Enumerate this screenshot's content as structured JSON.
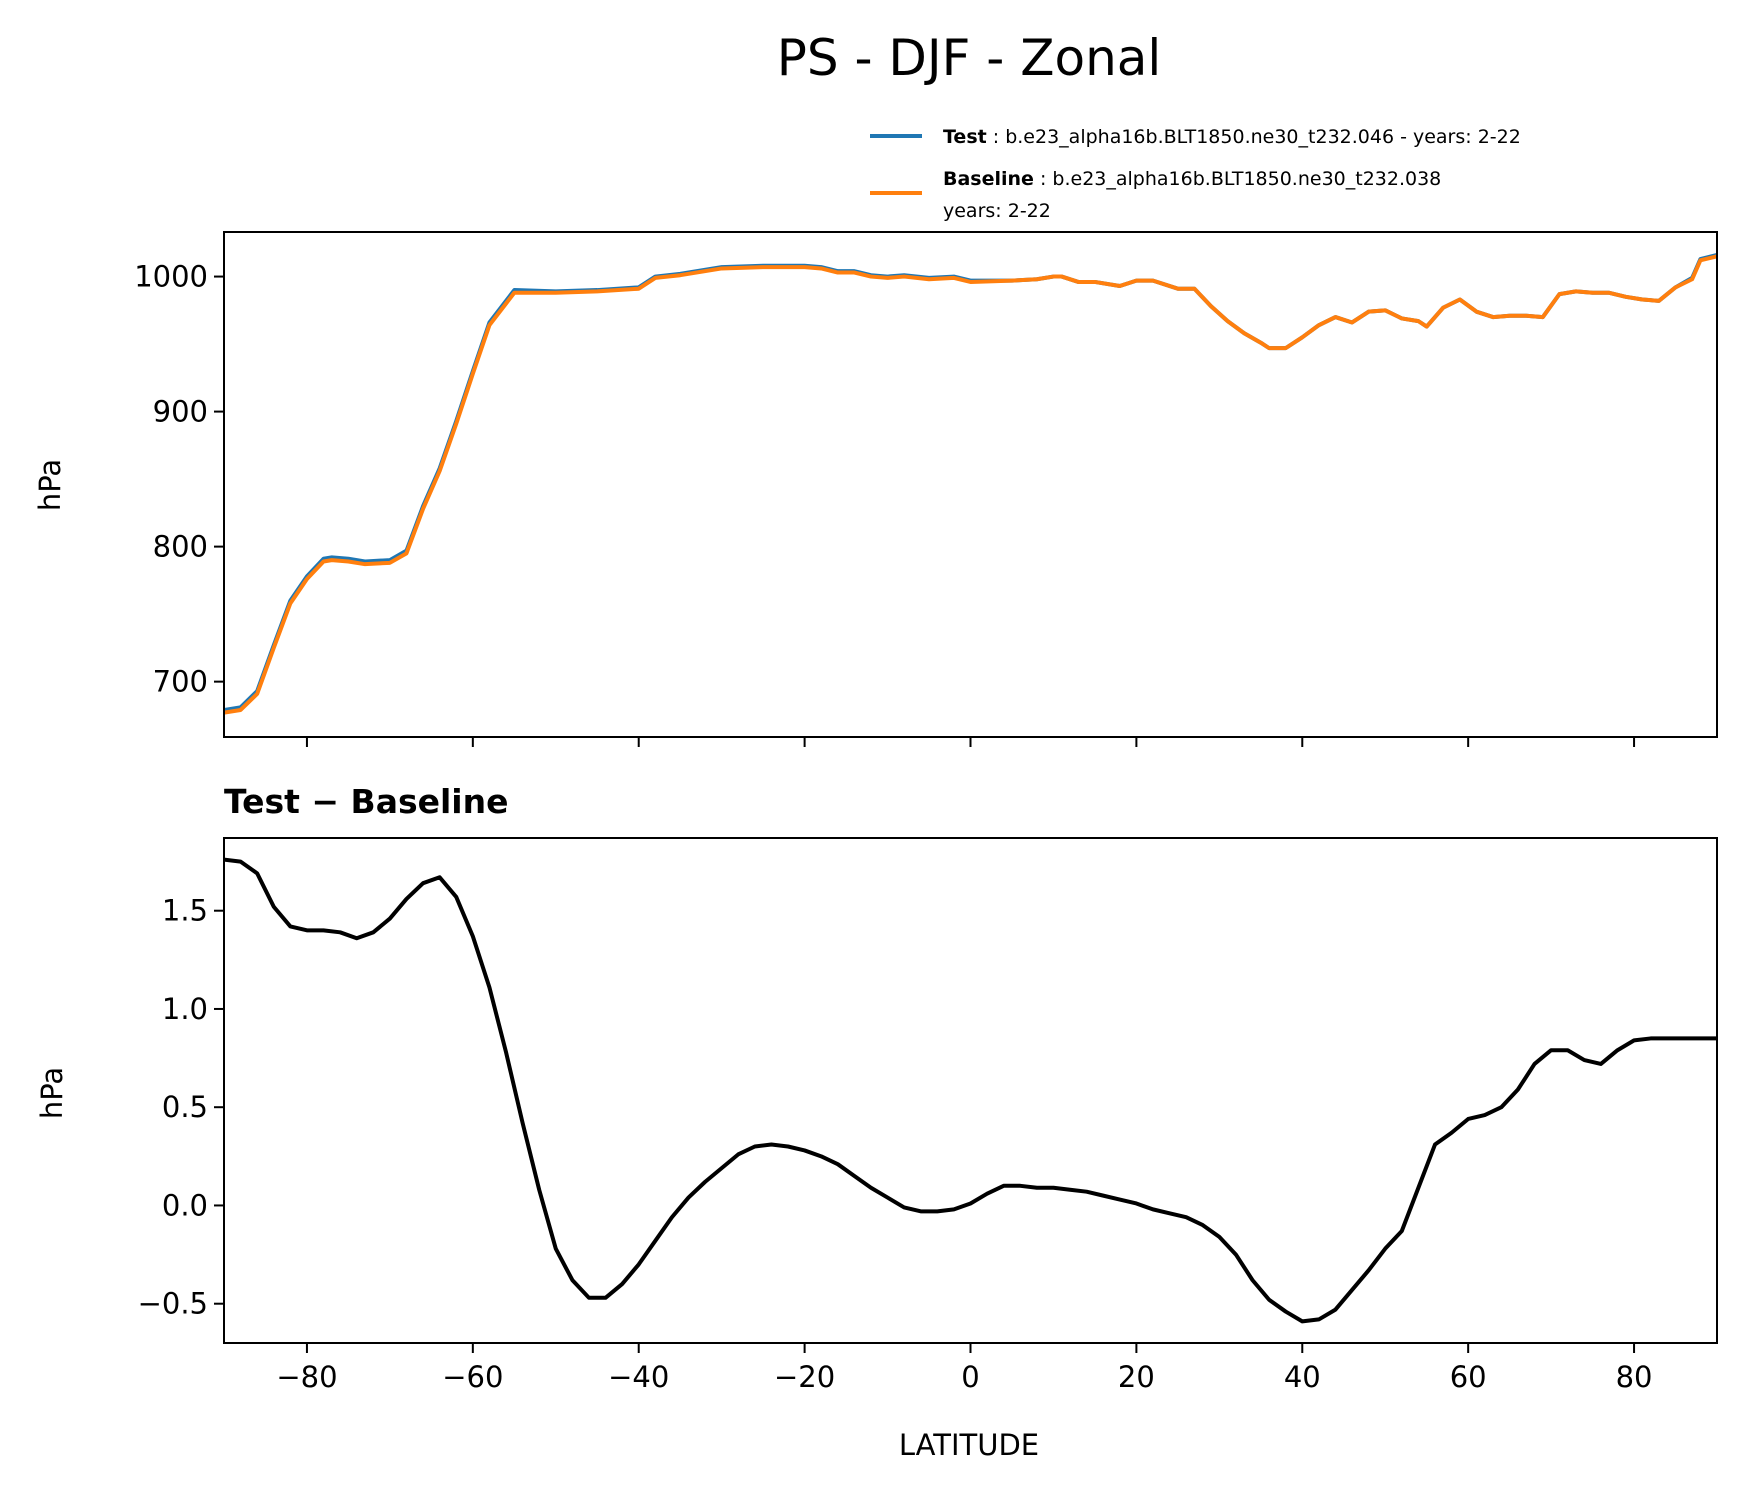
{
  "figure": {
    "title": "PS - DJF - Zonal"
  },
  "legend": {
    "items": [
      {
        "name": "Test",
        "sep": " : ",
        "text": "b.e23_alpha16b.BLT1850.ne30_t232.046 - years: 2-22",
        "color": "#1f77b4"
      },
      {
        "name": "Baseline",
        "sep": " : ",
        "text": "b.e23_alpha16b.BLT1850.ne30_t232.038",
        "text2": "years: 2-22",
        "color": "#ff7f0e"
      }
    ]
  },
  "chart_data": [
    {
      "type": "line",
      "title": "",
      "xlabel": "",
      "ylabel": "hPa",
      "xlim": [
        -90,
        90
      ],
      "ylim": [
        659,
        1033
      ],
      "xticks": [
        -80,
        -60,
        -40,
        -20,
        0,
        20,
        40,
        60,
        80
      ],
      "yticks": [
        700,
        800,
        900,
        1000
      ],
      "ytick_labels": [
        "700",
        "800",
        "900",
        "1000"
      ],
      "show_xtick_labels": false,
      "grid": false,
      "series": [
        {
          "name": "Test",
          "color": "#1f77b4",
          "x": [
            -90,
            -88,
            -86,
            -84,
            -82,
            -80,
            -78,
            -77,
            -75,
            -73,
            -70,
            -68,
            -66,
            -64,
            -62,
            -60,
            -58,
            -55,
            -50,
            -45,
            -40,
            -38,
            -35,
            -30,
            -25,
            -20,
            -18,
            -16,
            -14,
            -12,
            -10,
            -8,
            -5,
            -2,
            0,
            5,
            8,
            10,
            11,
            13,
            15,
            18,
            20,
            22,
            25,
            27,
            29,
            31,
            33,
            35,
            36,
            38,
            40,
            42,
            44,
            46,
            48,
            50,
            52,
            54,
            55,
            57,
            59,
            61,
            63,
            65,
            67,
            69,
            71,
            73,
            75,
            77,
            79,
            81,
            83,
            85,
            87,
            88,
            90
          ],
          "values": [
            679,
            681,
            693,
            727,
            760,
            778,
            791,
            792,
            791,
            789,
            790,
            797,
            830,
            858,
            893,
            930,
            966,
            990,
            989,
            990,
            992,
            1000,
            1002,
            1007,
            1008,
            1008,
            1007,
            1004,
            1004,
            1001,
            1000,
            1001,
            999,
            1000,
            997,
            997,
            998,
            1000,
            1000,
            996,
            996,
            993,
            997,
            997,
            991,
            991,
            978,
            967,
            958,
            951,
            947,
            947,
            955,
            964,
            970,
            966,
            974,
            975,
            969,
            967,
            963,
            977,
            983,
            974,
            970,
            971,
            971,
            970,
            987,
            989,
            988,
            988,
            985,
            983,
            982,
            992,
            999,
            1013,
            1016
          ]
        },
        {
          "name": "Baseline",
          "color": "#ff7f0e",
          "x": [
            -90,
            -88,
            -86,
            -84,
            -82,
            -80,
            -78,
            -77,
            -75,
            -73,
            -70,
            -68,
            -66,
            -64,
            -62,
            -60,
            -58,
            -55,
            -50,
            -45,
            -40,
            -38,
            -35,
            -30,
            -25,
            -20,
            -18,
            -16,
            -14,
            -12,
            -10,
            -8,
            -5,
            -2,
            0,
            5,
            8,
            10,
            11,
            13,
            15,
            18,
            20,
            22,
            25,
            27,
            29,
            31,
            33,
            35,
            36,
            38,
            40,
            42,
            44,
            46,
            48,
            50,
            52,
            54,
            55,
            57,
            59,
            61,
            63,
            65,
            67,
            69,
            71,
            73,
            75,
            77,
            79,
            81,
            83,
            85,
            87,
            88,
            90
          ],
          "values": [
            677,
            679,
            691,
            725,
            758,
            776,
            789,
            790,
            789,
            787,
            788,
            795,
            828,
            856,
            891,
            928,
            964,
            988,
            988,
            989,
            991,
            999,
            1001,
            1006,
            1007,
            1007,
            1006,
            1003,
            1003,
            1000,
            999,
            1000,
            998,
            999,
            996,
            997,
            998,
            1000,
            1000,
            996,
            996,
            993,
            997,
            997,
            991,
            991,
            978,
            967,
            958,
            951,
            947,
            947,
            955,
            964,
            970,
            966,
            974,
            975,
            969,
            967,
            963,
            977,
            983,
            974,
            970,
            971,
            971,
            970,
            987,
            989,
            988,
            988,
            985,
            983,
            982,
            992,
            998,
            1012,
            1015
          ]
        }
      ]
    },
    {
      "type": "line",
      "title": "Test − Baseline",
      "xlabel": "LATITUDE",
      "ylabel": "hPa",
      "xlim": [
        -90,
        90
      ],
      "ylim": [
        -0.7,
        1.87
      ],
      "xticks": [
        -80,
        -60,
        -40,
        -20,
        0,
        20,
        40,
        60,
        80
      ],
      "xtick_labels": [
        "−80",
        "−60",
        "−40",
        "−20",
        "0",
        "20",
        "40",
        "60",
        "80"
      ],
      "yticks": [
        -0.5,
        0.0,
        0.5,
        1.0,
        1.5
      ],
      "ytick_labels": [
        "−0.5",
        "0.0",
        "0.5",
        "1.0",
        "1.5"
      ],
      "grid": false,
      "series": [
        {
          "name": "Test - Baseline",
          "color": "#000000",
          "x": [
            -90,
            -88,
            -86,
            -84,
            -82,
            -80,
            -78,
            -76,
            -74,
            -72,
            -70,
            -68,
            -66,
            -64,
            -62,
            -60,
            -58,
            -56,
            -54,
            -52,
            -50,
            -48,
            -46,
            -44,
            -42,
            -40,
            -38,
            -36,
            -34,
            -32,
            -30,
            -28,
            -26,
            -24,
            -22,
            -20,
            -18,
            -16,
            -14,
            -12,
            -10,
            -8,
            -6,
            -4,
            -2,
            0,
            2,
            4,
            6,
            8,
            10,
            12,
            14,
            16,
            18,
            20,
            22,
            24,
            26,
            28,
            30,
            32,
            34,
            36,
            38,
            40,
            42,
            44,
            46,
            48,
            50,
            52,
            54,
            56,
            58,
            60,
            62,
            64,
            66,
            68,
            70,
            72,
            74,
            76,
            78,
            80,
            82,
            84,
            86,
            88,
            90
          ],
          "values": [
            1.76,
            1.75,
            1.69,
            1.52,
            1.42,
            1.4,
            1.4,
            1.39,
            1.36,
            1.39,
            1.46,
            1.56,
            1.64,
            1.67,
            1.57,
            1.37,
            1.11,
            0.78,
            0.42,
            0.08,
            -0.22,
            -0.38,
            -0.47,
            -0.47,
            -0.4,
            -0.3,
            -0.18,
            -0.06,
            0.04,
            0.12,
            0.19,
            0.26,
            0.3,
            0.31,
            0.3,
            0.28,
            0.25,
            0.21,
            0.15,
            0.09,
            0.04,
            -0.01,
            -0.03,
            -0.03,
            -0.02,
            0.01,
            0.06,
            0.1,
            0.1,
            0.09,
            0.09,
            0.08,
            0.07,
            0.05,
            0.03,
            0.01,
            -0.02,
            -0.04,
            -0.06,
            -0.1,
            -0.16,
            -0.25,
            -0.38,
            -0.48,
            -0.54,
            -0.59,
            -0.58,
            -0.53,
            -0.43,
            -0.33,
            -0.22,
            -0.13,
            0.09,
            0.31,
            0.37,
            0.44,
            0.46,
            0.5,
            0.59,
            0.72,
            0.79,
            0.79,
            0.74,
            0.72,
            0.79,
            0.84,
            0.85,
            0.85,
            0.85,
            0.85,
            0.85
          ]
        }
      ]
    }
  ]
}
